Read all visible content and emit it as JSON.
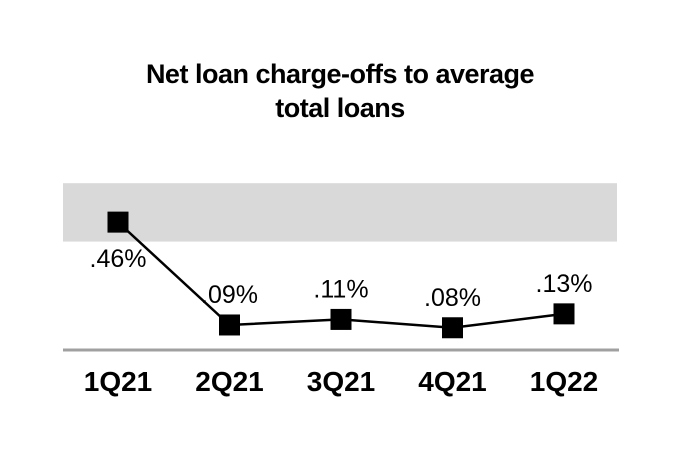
{
  "chart_data": {
    "type": "line",
    "title": "Net loan charge-offs to average total loans",
    "title_lines": [
      "Net loan charge-offs to average",
      "total loans"
    ],
    "categories": [
      "1Q21",
      "2Q21",
      "3Q21",
      "4Q21",
      "1Q22"
    ],
    "values": [
      0.46,
      0.09,
      0.11,
      0.08,
      0.13
    ],
    "point_labels": [
      ".46%",
      ".09%",
      ".11%",
      ".08%",
      ".13%"
    ],
    "point_label_positions": [
      "below",
      "above",
      "above",
      "above",
      "above"
    ],
    "unit": "%",
    "xlabel": "",
    "ylabel": "",
    "ylim": [
      0,
      0.65
    ],
    "grid": false,
    "legend": false,
    "marker_shape": "square",
    "highlight_band": {
      "from": 0.39,
      "to": 0.6
    },
    "colors": {
      "line": "#000000",
      "marker": "#000000",
      "band": "#d9d9d9",
      "axis": "#a0a0a0",
      "text": "#000000",
      "background": "#ffffff"
    }
  }
}
